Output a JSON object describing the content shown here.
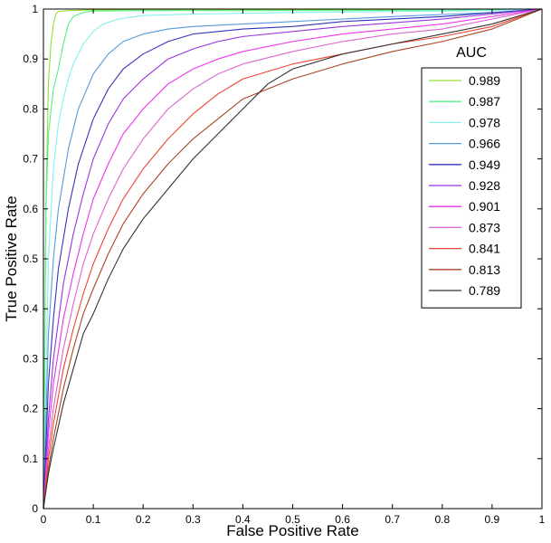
{
  "chart_data": {
    "type": "line",
    "title": "",
    "xlabel": "False Positive Rate",
    "ylabel": "True Positive Rate",
    "xlim": [
      0,
      1
    ],
    "ylim": [
      0,
      1
    ],
    "xticks": [
      "0",
      "0.1",
      "0.2",
      "0.3",
      "0.4",
      "0.5",
      "0.6",
      "0.7",
      "0.8",
      "0.9",
      "1"
    ],
    "yticks": [
      "0",
      "0.1",
      "0.2",
      "0.3",
      "0.4",
      "0.5",
      "0.6",
      "0.7",
      "0.8",
      "0.9",
      "1"
    ],
    "grid": false,
    "legend": {
      "title": "AUC",
      "placement": "top-right"
    },
    "series": [
      {
        "label": "0.989",
        "color": "#99dd33",
        "x": [
          0,
          0.005,
          0.01,
          0.015,
          0.02,
          0.025,
          0.03,
          0.05,
          0.1,
          0.2,
          0.4,
          0.6,
          0.8,
          1
        ],
        "y": [
          0,
          0.6,
          0.85,
          0.93,
          0.97,
          0.99,
          0.995,
          0.997,
          0.998,
          0.999,
          0.999,
          0.999,
          0.999,
          1
        ]
      },
      {
        "label": "0.987",
        "color": "#55ee88",
        "x": [
          0,
          0.005,
          0.01,
          0.02,
          0.03,
          0.04,
          0.05,
          0.06,
          0.08,
          0.1,
          0.2,
          0.4,
          0.6,
          0.8,
          1
        ],
        "y": [
          0,
          0.6,
          0.75,
          0.84,
          0.88,
          0.93,
          0.97,
          0.985,
          0.993,
          0.996,
          0.997,
          0.997,
          0.997,
          0.998,
          1
        ]
      },
      {
        "label": "0.978",
        "color": "#88eeee",
        "x": [
          0,
          0.01,
          0.02,
          0.03,
          0.04,
          0.05,
          0.06,
          0.08,
          0.1,
          0.12,
          0.15,
          0.2,
          0.3,
          0.5,
          0.7,
          0.9,
          1
        ],
        "y": [
          0,
          0.5,
          0.68,
          0.77,
          0.82,
          0.86,
          0.89,
          0.93,
          0.955,
          0.97,
          0.98,
          0.987,
          0.99,
          0.993,
          0.995,
          0.997,
          1
        ]
      },
      {
        "label": "0.966",
        "color": "#5599dd",
        "x": [
          0,
          0.01,
          0.02,
          0.03,
          0.05,
          0.07,
          0.1,
          0.13,
          0.16,
          0.2,
          0.25,
          0.3,
          0.4,
          0.5,
          0.7,
          0.9,
          1
        ],
        "y": [
          0,
          0.35,
          0.5,
          0.6,
          0.72,
          0.8,
          0.87,
          0.91,
          0.935,
          0.95,
          0.96,
          0.965,
          0.97,
          0.975,
          0.985,
          0.993,
          1
        ]
      },
      {
        "label": "0.949",
        "color": "#3333bb",
        "x": [
          0,
          0.01,
          0.02,
          0.03,
          0.05,
          0.07,
          0.1,
          0.13,
          0.16,
          0.2,
          0.25,
          0.3,
          0.4,
          0.5,
          0.6,
          0.8,
          1
        ],
        "y": [
          0,
          0.25,
          0.38,
          0.48,
          0.6,
          0.69,
          0.78,
          0.84,
          0.88,
          0.91,
          0.935,
          0.95,
          0.96,
          0.965,
          0.975,
          0.985,
          1
        ]
      },
      {
        "label": "0.928",
        "color": "#9933dd",
        "x": [
          0,
          0.01,
          0.02,
          0.04,
          0.06,
          0.08,
          0.1,
          0.13,
          0.16,
          0.2,
          0.25,
          0.3,
          0.35,
          0.4,
          0.5,
          0.6,
          0.8,
          1
        ],
        "y": [
          0,
          0.18,
          0.3,
          0.45,
          0.55,
          0.63,
          0.7,
          0.77,
          0.82,
          0.86,
          0.9,
          0.92,
          0.935,
          0.945,
          0.955,
          0.965,
          0.98,
          1
        ]
      },
      {
        "label": "0.901",
        "color": "#ee33ee",
        "x": [
          0,
          0.01,
          0.02,
          0.04,
          0.06,
          0.08,
          0.1,
          0.13,
          0.16,
          0.2,
          0.25,
          0.3,
          0.35,
          0.4,
          0.5,
          0.6,
          0.7,
          0.8,
          1
        ],
        "y": [
          0,
          0.15,
          0.25,
          0.38,
          0.47,
          0.55,
          0.62,
          0.69,
          0.75,
          0.8,
          0.85,
          0.88,
          0.9,
          0.915,
          0.935,
          0.95,
          0.96,
          0.97,
          1
        ]
      },
      {
        "label": "0.873",
        "color": "#dd66cc",
        "x": [
          0,
          0.01,
          0.02,
          0.04,
          0.06,
          0.08,
          0.1,
          0.13,
          0.16,
          0.2,
          0.25,
          0.3,
          0.35,
          0.4,
          0.5,
          0.6,
          0.7,
          0.8,
          1
        ],
        "y": [
          0,
          0.12,
          0.2,
          0.32,
          0.41,
          0.49,
          0.55,
          0.62,
          0.68,
          0.74,
          0.8,
          0.84,
          0.87,
          0.89,
          0.915,
          0.935,
          0.95,
          0.96,
          1
        ]
      },
      {
        "label": "0.841",
        "color": "#ee4433",
        "x": [
          0,
          0.01,
          0.02,
          0.04,
          0.06,
          0.08,
          0.1,
          0.13,
          0.16,
          0.2,
          0.25,
          0.3,
          0.35,
          0.4,
          0.5,
          0.6,
          0.7,
          0.8,
          0.9,
          1
        ],
        "y": [
          0,
          0.1,
          0.17,
          0.28,
          0.36,
          0.43,
          0.49,
          0.56,
          0.62,
          0.68,
          0.74,
          0.79,
          0.83,
          0.86,
          0.89,
          0.91,
          0.93,
          0.945,
          0.965,
          1
        ]
      },
      {
        "label": "0.813",
        "color": "#aa4422",
        "x": [
          0,
          0.01,
          0.02,
          0.04,
          0.06,
          0.08,
          0.1,
          0.13,
          0.16,
          0.2,
          0.25,
          0.3,
          0.35,
          0.4,
          0.5,
          0.6,
          0.7,
          0.8,
          0.9,
          1
        ],
        "y": [
          0,
          0.08,
          0.14,
          0.24,
          0.32,
          0.39,
          0.44,
          0.51,
          0.57,
          0.63,
          0.69,
          0.74,
          0.78,
          0.82,
          0.86,
          0.89,
          0.915,
          0.935,
          0.96,
          1
        ]
      },
      {
        "label": "0.789",
        "color": "#333333",
        "x": [
          0,
          0.01,
          0.02,
          0.04,
          0.06,
          0.08,
          0.1,
          0.13,
          0.16,
          0.2,
          0.25,
          0.3,
          0.35,
          0.4,
          0.45,
          0.5,
          0.6,
          0.7,
          0.8,
          0.9,
          1
        ],
        "y": [
          0,
          0.07,
          0.12,
          0.21,
          0.28,
          0.35,
          0.39,
          0.46,
          0.52,
          0.58,
          0.64,
          0.7,
          0.75,
          0.8,
          0.85,
          0.88,
          0.91,
          0.93,
          0.95,
          0.97,
          1
        ]
      }
    ]
  }
}
